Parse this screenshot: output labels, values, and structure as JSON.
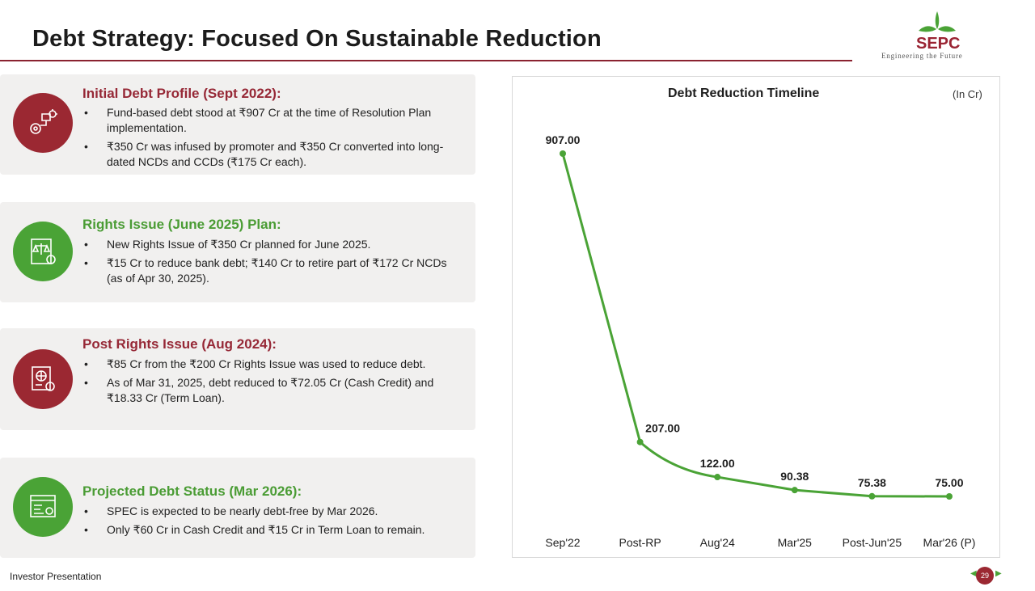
{
  "slide": {
    "title": "Debt Strategy: Focused On Sustainable Reduction",
    "logo_name": "SEPC",
    "logo_tagline": "Engineering the Future",
    "footer": "Investor Presentation",
    "page_number": "29"
  },
  "cards": [
    {
      "title": "Initial Debt Profile (Sept 2022):",
      "icon": "strategy-gears-icon",
      "color": "#9b2832",
      "bullets": [
        "Fund-based debt stood at ₹907 Cr at the time of Resolution Plan implementation.",
        "₹350 Cr was infused by promoter and ₹350 Cr converted into long-dated NCDs and CCDs (₹175 Cr each)."
      ]
    },
    {
      "title": "Rights Issue (June 2025) Plan:",
      "icon": "legal-scales-document-icon",
      "color": "#4aa336",
      "bullets": [
        "New Rights Issue of ₹350 Cr planned for June 2025.",
        "₹15 Cr to reduce bank debt; ₹140 Cr to retire part of ₹172 Cr NCDs (as of Apr 30, 2025)."
      ]
    },
    {
      "title": "Post Rights Issue (Aug 2024):",
      "icon": "document-globe-icon",
      "color": "#9b2832",
      "bullets": [
        "₹85 Cr from the ₹200 Cr Rights Issue was used to reduce debt.",
        "As of Mar 31, 2025, debt reduced to ₹72.05 Cr (Cash Credit) and ₹18.33 Cr (Term Loan)."
      ]
    },
    {
      "title": "Projected Debt Status (Mar 2026):",
      "icon": "project-board-icon",
      "color": "#4aa336",
      "bullets": [
        "SPEC is expected to be nearly debt-free by Mar 2026.",
        "Only ₹60 Cr in Cash Credit and ₹15 Cr in Term Loan to remain."
      ]
    }
  ],
  "chart_data": {
    "type": "line",
    "title": "Debt Reduction Timeline",
    "unit": "(In Cr)",
    "categories": [
      "Sep'22",
      "Post-RP",
      "Aug'24",
      "Mar'25",
      "Post-Jun'25",
      "Mar'26 (P)"
    ],
    "values": [
      907.0,
      207.0,
      122.0,
      90.38,
      75.38,
      75.0
    ],
    "data_labels": [
      "907.00",
      "207.00",
      "122.00",
      "90.38",
      "75.38",
      "75.00"
    ],
    "ylim": [
      0,
      1000
    ],
    "grid": false,
    "color": "#4aa336"
  }
}
